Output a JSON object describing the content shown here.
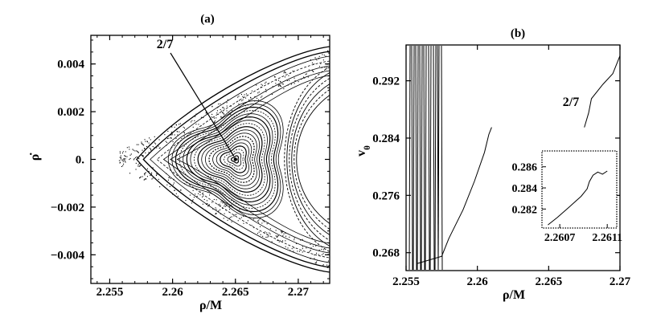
{
  "chart_data": [
    {
      "type": "scatter",
      "title": "(a)",
      "xlabel": "ρ/M",
      "ylabel": "ρ̇",
      "xlim": [
        2.2535,
        2.2725
      ],
      "ylim": [
        -0.0052,
        0.0052
      ],
      "xticks": [
        2.255,
        2.26,
        2.265,
        2.27
      ],
      "xtick_labels": [
        "2.255",
        "2.26",
        "2.265",
        "2.27"
      ],
      "yticks": [
        -0.004,
        -0.002,
        0,
        0.002,
        0.004
      ],
      "ytick_labels": [
        "−0.004",
        "−0.002",
        "0.",
        "0.002",
        "0.004"
      ],
      "annotation": {
        "text": "2/7",
        "target": [
          2.265,
          0.0
        ]
      },
      "island_center": [
        2.265,
        0.0
      ],
      "separatrix_vertex": [
        2.2565,
        0.0
      ],
      "grid": false
    },
    {
      "type": "line",
      "title": "(b)",
      "xlabel": "ρ/M",
      "ylabel": "v_θ",
      "xlim": [
        2.255,
        2.27
      ],
      "ylim": [
        0.2655,
        0.297
      ],
      "xticks": [
        2.255,
        2.26,
        2.265,
        2.27
      ],
      "xtick_labels": [
        "2.255",
        "2.26",
        "2.265",
        "2.27"
      ],
      "yticks": [
        0.268,
        0.276,
        0.284,
        0.292
      ],
      "ytick_labels": [
        "0.268",
        "0.276",
        "0.284",
        "0.292"
      ],
      "annotation": {
        "text": "2/7"
      },
      "series": [
        {
          "values": [
            [
              2.2558,
              0.2665
            ],
            [
              2.2575,
              0.2675
            ],
            [
              2.258,
              0.27
            ],
            [
              2.259,
              0.274
            ],
            [
              2.2598,
              0.278
            ],
            [
              2.2605,
              0.282
            ],
            [
              2.2608,
              0.2845
            ],
            [
              2.261,
              0.2855
            ]
          ]
        },
        {
          "values": [
            [
              2.2675,
              0.2855
            ],
            [
              2.2678,
              0.2875
            ],
            [
              2.268,
              0.2895
            ],
            [
              2.2688,
              0.2915
            ],
            [
              2.2695,
              0.293
            ],
            [
              2.27,
              0.2955
            ]
          ]
        }
      ],
      "inset": {
        "xticks": [
          2.2607,
          2.2611
        ],
        "xtick_labels": [
          "2.2607",
          "2.2611"
        ],
        "yticks": [
          0.282,
          0.284,
          0.286
        ],
        "ytick_labels": [
          "0.282",
          "0.284",
          "0.286"
        ],
        "xlim": [
          2.26055,
          2.26118
        ],
        "ylim": [
          0.2802,
          0.2875
        ],
        "values": [
          [
            2.2606,
            0.2805
          ],
          [
            2.26068,
            0.2812
          ],
          [
            2.26078,
            0.2822
          ],
          [
            2.26088,
            0.2832
          ],
          [
            2.26093,
            0.2839
          ],
          [
            2.26095,
            0.2846
          ],
          [
            2.26098,
            0.2852
          ],
          [
            2.26102,
            0.2855
          ],
          [
            2.26106,
            0.2853
          ],
          [
            2.2611,
            0.2856
          ]
        ]
      }
    }
  ]
}
